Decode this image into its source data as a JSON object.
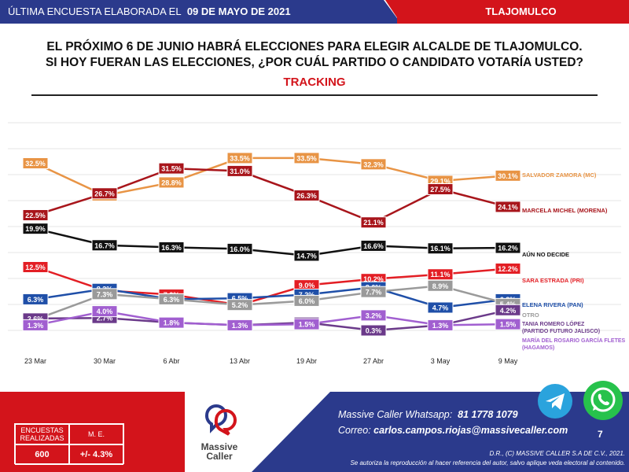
{
  "header": {
    "prefix": "ÚLTIMA ENCUESTA ELABORADA EL",
    "date": "09 DE MAYO DE 2021",
    "region": "TLAJOMULCO"
  },
  "headline": {
    "line1": "EL PRÓXIMO 6 DE JUNIO HABRÁ ELECCIONES PARA ELEGIR ALCALDE DE TLAJOMULCO.",
    "line2": "SI HOY FUERAN LAS ELECCIONES, ¿POR CUÁL PARTIDO O CANDIDATO VOTARÍA USTED?",
    "tracking": "TRACKING"
  },
  "chart_data": {
    "type": "line",
    "categories": [
      "23 Mar",
      "30 Mar",
      "6 Abr",
      "13 Abr",
      "19 Abr",
      "27 Abr",
      "3 May",
      "9 May"
    ],
    "grid": true,
    "series": [
      {
        "name": "SALVADOR ZAMORA (MC)",
        "color": "#e89445",
        "values": [
          32.5,
          26.3,
          28.8,
          33.5,
          33.5,
          32.3,
          29.1,
          30.1
        ]
      },
      {
        "name": "MARCELA MICHEL (MORENA)",
        "color": "#a8151b",
        "values": [
          22.5,
          26.7,
          31.5,
          31.0,
          26.3,
          21.1,
          27.5,
          24.1
        ]
      },
      {
        "name": "AÚN NO DECIDE",
        "color": "#111111",
        "values": [
          19.9,
          16.7,
          16.3,
          16.0,
          14.7,
          16.6,
          16.1,
          16.2
        ]
      },
      {
        "name": "SARA ESTRADA (PRI)",
        "color": "#e31e24",
        "values": [
          12.5,
          8.0,
          7.2,
          5.2,
          9.0,
          10.2,
          11.1,
          12.2
        ]
      },
      {
        "name": "ELENA RIVERA (PAN)",
        "color": "#1f4fa8",
        "values": [
          6.3,
          8.3,
          6.3,
          6.5,
          7.2,
          8.6,
          4.7,
          6.3
        ]
      },
      {
        "name": "OTRO",
        "color": "#9a9a9a",
        "values": [
          2.4,
          7.3,
          6.3,
          5.2,
          6.0,
          7.7,
          8.9,
          5.4
        ]
      },
      {
        "name": "TANIA ROMERO LÓPEZ (PARTIDO FUTURO JALISCO)",
        "color": "#6b3a8a",
        "values": [
          2.6,
          2.7,
          1.8,
          1.3,
          1.8,
          0.3,
          1.3,
          4.2
        ]
      },
      {
        "name": "MARÍA DEL ROSARIO GARCÍA FLETES (HAGAMOS)",
        "color": "#a15fd0",
        "values": [
          1.3,
          4.0,
          1.8,
          1.3,
          1.5,
          3.2,
          1.3,
          1.5
        ]
      }
    ]
  },
  "survey_box": {
    "col1_header": "ENCUESTAS REALIZADAS",
    "col2_header": "M. E.",
    "col1_value": "600",
    "col2_value": "+/- 4.3%"
  },
  "brand": {
    "name_line1": "Massive",
    "name_line2": "Caller"
  },
  "contact": {
    "whatsapp_label": "Massive Caller Whatsapp:",
    "whatsapp_number": "81 1778 1079",
    "email_label": "Correo:",
    "email": "carlos.campos.riojas@massivecaller.com"
  },
  "page_number": "7",
  "copyright": {
    "line1": "D.R., (C) MASSIVE CALLER S.A DE C.V., 2021.",
    "line2": "Se autoriza la reproducción al hacer referencia del autor, salvo aplique veda electoral al contenido."
  },
  "icons": {
    "telegram": "telegram-icon",
    "whatsapp": "whatsapp-icon"
  }
}
